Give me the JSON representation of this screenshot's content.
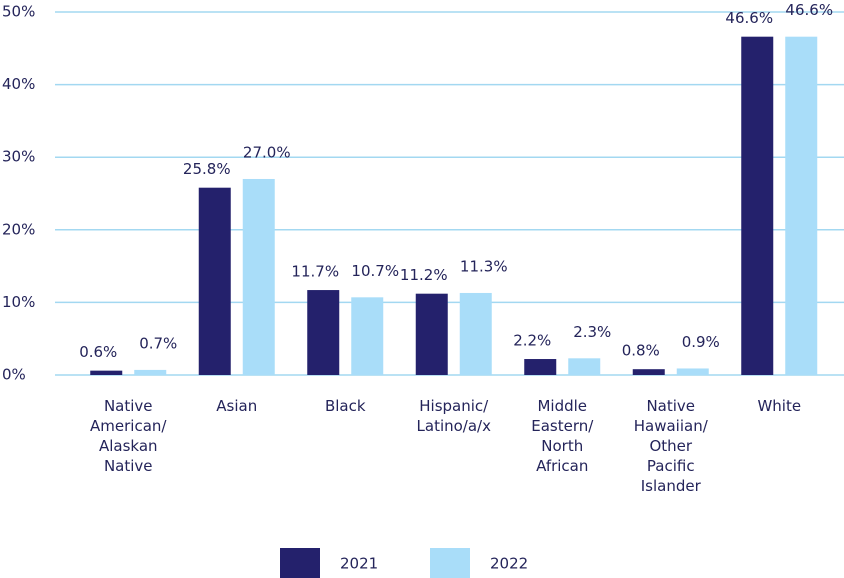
{
  "chart_data": {
    "type": "bar",
    "categories": [
      "Native American/ Alaskan Native",
      "Asian",
      "Black",
      "Hispanic/ Latino/a/x",
      "Middle Eastern/ North African",
      "Native Hawaiian/ Other Pacific Islander",
      "White"
    ],
    "series": [
      {
        "name": "2021",
        "color": "#24216c",
        "values": [
          0.6,
          25.8,
          11.7,
          11.2,
          2.2,
          0.8,
          46.6
        ],
        "value_labels": [
          "0.6%",
          "25.8%",
          "11.7%",
          "11.2%",
          "2.2%",
          "0.8%",
          "46.6%"
        ]
      },
      {
        "name": "2022",
        "color": "#a9ddf9",
        "values": [
          0.7,
          27.0,
          10.7,
          11.3,
          2.3,
          0.9,
          46.6
        ],
        "value_labels": [
          "0.7%",
          "27.0%",
          "10.7%",
          "11.3%",
          "2.3%",
          "0.9%",
          "46.6%"
        ]
      }
    ],
    "ylim": [
      0,
      50
    ],
    "yticks": [
      {
        "value": 0,
        "label": "0%"
      },
      {
        "value": 10,
        "label": "10%"
      },
      {
        "value": 20,
        "label": "20%"
      },
      {
        "value": 30,
        "label": "30%"
      },
      {
        "value": 40,
        "label": "40%"
      },
      {
        "value": 50,
        "label": "50%"
      }
    ],
    "grid": true,
    "legend": "bottom"
  }
}
